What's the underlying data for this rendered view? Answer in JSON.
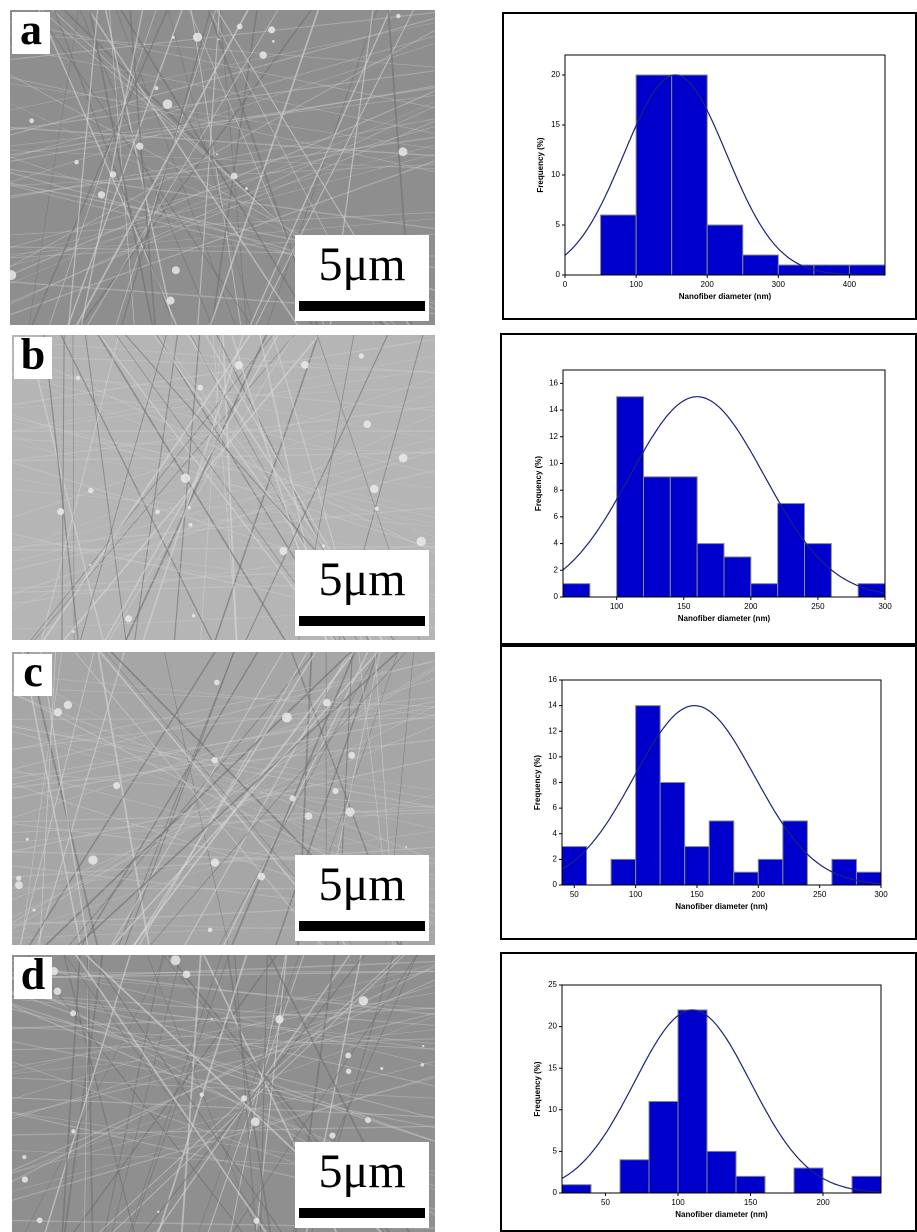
{
  "panels": [
    {
      "label": "a",
      "scale_bar": "5μm"
    },
    {
      "label": "b",
      "scale_bar": "5μm"
    },
    {
      "label": "c",
      "scale_bar": "5μm"
    },
    {
      "label": "d",
      "scale_bar": "5μm"
    }
  ],
  "chart_data": [
    {
      "type": "histogram",
      "x_label": "Nanofiber diameter (nm)",
      "y_label": "Frequency (%)",
      "bins": [
        50,
        100,
        150,
        200,
        250,
        300,
        350,
        400,
        450
      ],
      "values": [
        6,
        20,
        20,
        5,
        2,
        1,
        1,
        1
      ],
      "color": "#0000cc",
      "fit": {
        "mean": 155,
        "sd": 72,
        "peak": 20,
        "color": "#1a237e"
      },
      "xlim": [
        0,
        450
      ],
      "xticks": [
        0,
        100,
        200,
        300,
        400
      ],
      "ylim": [
        0,
        22
      ],
      "yticks": [
        0,
        5,
        10,
        15,
        20
      ]
    },
    {
      "type": "histogram",
      "x_label": "Nanofiber diameter (nm)",
      "y_label": "Frequency (%)",
      "bins": [
        60,
        80,
        100,
        120,
        140,
        160,
        180,
        200,
        220,
        240,
        260,
        280,
        300
      ],
      "values": [
        1,
        0,
        15,
        9,
        9,
        4,
        3,
        1,
        7,
        4,
        0,
        1
      ],
      "color": "#0000cc",
      "fit": {
        "mean": 160,
        "sd": 50,
        "peak": 15,
        "color": "#1a237e"
      },
      "xlim": [
        60,
        300
      ],
      "xticks": [
        100,
        150,
        200,
        250,
        300
      ],
      "ylim": [
        0,
        17
      ],
      "yticks": [
        0,
        2,
        4,
        6,
        8,
        10,
        12,
        14,
        16
      ]
    },
    {
      "type": "histogram",
      "x_label": "Nanofiber diameter (nm)",
      "y_label": "Frequency (%)",
      "bins": [
        40,
        60,
        80,
        100,
        120,
        140,
        160,
        180,
        200,
        220,
        240,
        260,
        280,
        300
      ],
      "values": [
        3,
        0,
        2,
        14,
        8,
        3,
        5,
        1,
        2,
        5,
        0,
        2,
        1
      ],
      "color": "#0000cc",
      "fit": {
        "mean": 148,
        "sd": 49,
        "peak": 14,
        "color": "#1a237e"
      },
      "xlim": [
        40,
        300
      ],
      "xticks": [
        50,
        100,
        150,
        200,
        250,
        300
      ],
      "ylim": [
        0,
        16
      ],
      "yticks": [
        0,
        2,
        4,
        6,
        8,
        10,
        12,
        14,
        16
      ]
    },
    {
      "type": "histogram",
      "x_label": "Nanofiber diameter (nm)",
      "y_label": "Frequency (%)",
      "bins": [
        20,
        40,
        60,
        80,
        100,
        120,
        140,
        160,
        180,
        200,
        220,
        240
      ],
      "values": [
        1,
        0,
        4,
        11,
        22,
        5,
        2,
        0,
        3,
        0,
        2
      ],
      "color": "#0000cc",
      "fit": {
        "mean": 110,
        "sd": 40,
        "peak": 22,
        "color": "#1a237e"
      },
      "xlim": [
        20,
        240
      ],
      "xticks": [
        50,
        100,
        150,
        200
      ],
      "ylim": [
        0,
        25
      ],
      "yticks": [
        0,
        5,
        10,
        15,
        20,
        25
      ]
    }
  ]
}
